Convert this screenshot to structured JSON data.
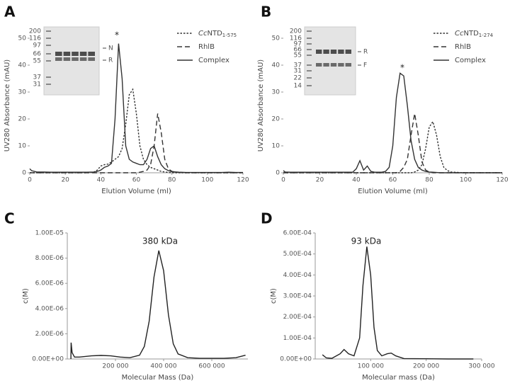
{
  "chart_data": [
    {
      "type": "line",
      "panel_label": "A",
      "x_label": "Elution Volume (ml)",
      "y_label": "UV280 Absorbance (mAU)",
      "x": [
        0,
        1,
        4,
        8,
        12,
        16,
        20,
        24,
        28,
        32,
        36,
        38,
        40,
        42,
        44,
        46,
        48,
        50,
        52,
        54,
        56,
        58,
        60,
        62,
        64,
        66,
        68,
        70,
        72,
        74,
        76,
        78,
        80,
        84,
        88,
        92,
        96,
        100,
        104,
        108,
        112,
        116,
        120
      ],
      "series": [
        {
          "name": "CcNTD1-575",
          "color": "#333333",
          "line_style": "dotted",
          "values": [
            0,
            0,
            0,
            0,
            0,
            0,
            0,
            0,
            0,
            0,
            0.2,
            1,
            2.5,
            3,
            3.2,
            4,
            5,
            6,
            9,
            18,
            29,
            31,
            22,
            10,
            5,
            3,
            2,
            1.5,
            1,
            0.5,
            0.3,
            0.1,
            0,
            0,
            0,
            0,
            0,
            0,
            0,
            0,
            0,
            0,
            0
          ]
        },
        {
          "name": "RhlB",
          "color": "#333333",
          "line_style": "dashed",
          "values": [
            0,
            0,
            0,
            0,
            0,
            0,
            0,
            0,
            0,
            0,
            0,
            0,
            0,
            0,
            0,
            0,
            0,
            0,
            0,
            0,
            0,
            0,
            0,
            0.2,
            0.5,
            1,
            3,
            10,
            22,
            15,
            5,
            1.5,
            0.5,
            0.1,
            0,
            0,
            0,
            0,
            0,
            0,
            0,
            0,
            0
          ]
        },
        {
          "name": "Complex",
          "color": "#333333",
          "line_style": "solid",
          "values": [
            1.5,
            0.8,
            0.3,
            0.3,
            0.2,
            0.2,
            0.2,
            0.2,
            0.2,
            0.2,
            0.3,
            0.5,
            1,
            2,
            2.5,
            3.5,
            20,
            48,
            35,
            10,
            5,
            4,
            3.5,
            3,
            3,
            5,
            9,
            10,
            6,
            3,
            1.5,
            0.8,
            0.4,
            0.2,
            0.1,
            0.1,
            0.1,
            0.1,
            0.1,
            0.1,
            0.2,
            0.1,
            0.1
          ]
        }
      ],
      "xlim": [
        0,
        120
      ],
      "ylim": [
        0,
        50
      ],
      "xticks": [
        0,
        20,
        40,
        60,
        80,
        100,
        120
      ],
      "yticks": [
        0,
        10,
        20,
        30,
        40,
        50
      ],
      "annotations": [
        "*"
      ],
      "inset": {
        "markers": [
          "200",
          "116",
          "97",
          "66",
          "55",
          "37",
          "31"
        ],
        "bands": [
          "N",
          "R"
        ]
      }
    },
    {
      "type": "line",
      "panel_label": "B",
      "x_label": "Elution Volume (ml)",
      "y_label": "UV280 Absorbance (mAU)",
      "x": [
        0,
        1,
        4,
        8,
        12,
        16,
        20,
        24,
        28,
        32,
        36,
        38,
        40,
        42,
        44,
        46,
        48,
        50,
        52,
        54,
        56,
        58,
        60,
        62,
        64,
        66,
        68,
        70,
        72,
        74,
        76,
        78,
        80,
        82,
        84,
        86,
        88,
        90,
        92,
        96,
        100,
        104,
        108,
        112,
        116,
        120
      ],
      "series": [
        {
          "name": "CcNTD1-274",
          "color": "#333333",
          "line_style": "dotted",
          "values": [
            0,
            0,
            0,
            0,
            0,
            0,
            0,
            0,
            0,
            0,
            0,
            0,
            0,
            0,
            0,
            0,
            0,
            0,
            0,
            0,
            0,
            0,
            0,
            0,
            0,
            0,
            0,
            0,
            0.3,
            1,
            3,
            9,
            17,
            19,
            14,
            6,
            2,
            0.8,
            0.3,
            0.1,
            0,
            0,
            0,
            0,
            0,
            0
          ]
        },
        {
          "name": "RhlB",
          "color": "#333333",
          "line_style": "dashed",
          "values": [
            0,
            0,
            0,
            0,
            0,
            0,
            0,
            0,
            0,
            0,
            0,
            0,
            0,
            0,
            0,
            0,
            0,
            0,
            0,
            0,
            0,
            0,
            0,
            0,
            0.5,
            2,
            5,
            14,
            22,
            14,
            4,
            1,
            0.3,
            0,
            0,
            0,
            0,
            0,
            0,
            0,
            0,
            0,
            0,
            0,
            0,
            0
          ]
        },
        {
          "name": "Complex",
          "color": "#333333",
          "line_style": "solid",
          "values": [
            0.8,
            0.3,
            0.2,
            0.2,
            0.2,
            0.2,
            0.2,
            0.2,
            0.2,
            0.2,
            0.2,
            0.2,
            1.5,
            4.5,
            1,
            2.5,
            0.5,
            0.2,
            0.2,
            0.2,
            0.5,
            2,
            10,
            28,
            37,
            36,
            25,
            12,
            5,
            2,
            1,
            0.5,
            0.3,
            0.2,
            0.1,
            0,
            0,
            0,
            0,
            0,
            0,
            0,
            0,
            0,
            0,
            0
          ]
        }
      ],
      "xlim": [
        0,
        120
      ],
      "ylim": [
        0,
        50
      ],
      "xticks": [
        0,
        20,
        40,
        60,
        80,
        100,
        120
      ],
      "yticks": [
        0,
        10,
        20,
        30,
        40,
        50
      ],
      "annotations": [
        "*"
      ],
      "inset": {
        "markers": [
          "200",
          "116",
          "97",
          "66",
          "55",
          "37",
          "31",
          "22",
          "14"
        ],
        "bands": [
          "R",
          "F"
        ]
      }
    },
    {
      "type": "line",
      "panel_label": "C",
      "x_label": "Molecular Mass (Da)",
      "y_label": "c(M)",
      "x": [
        15000,
        16000,
        20000,
        30000,
        50000,
        100000,
        140000,
        180000,
        220000,
        260000,
        300000,
        320000,
        340000,
        360000,
        380000,
        400000,
        420000,
        440000,
        460000,
        500000,
        550000,
        650000,
        700000,
        740000
      ],
      "series": [
        {
          "name": "c(M)",
          "color": "#222222",
          "line_style": "solid",
          "values": [
            0,
            1.3e-06,
            5e-07,
            1.5e-07,
            1.5e-07,
            2.5e-07,
            2.8e-07,
            2.5e-07,
            1.5e-07,
            1e-07,
            3e-07,
            1e-06,
            3e-06,
            6.5e-06,
            8.6e-06,
            7e-06,
            3.5e-06,
            1.2e-06,
            4e-07,
            1e-07,
            5e-08,
            5e-08,
            1e-07,
            3e-07
          ]
        }
      ],
      "xlim": [
        0,
        750000
      ],
      "ylim": [
        0,
        1e-05
      ],
      "xticks": [
        {
          "value": 200000,
          "label": "200 000"
        },
        {
          "value": 400000,
          "label": "400 000"
        },
        {
          "value": 600000,
          "label": "600 000"
        }
      ],
      "yticks": [
        {
          "value": 0,
          "label": "0.00E+00"
        },
        {
          "value": 2e-06,
          "label": "2.00E-06"
        },
        {
          "value": 4e-06,
          "label": "4.00E-06"
        },
        {
          "value": 6e-06,
          "label": "6.00E-06"
        },
        {
          "value": 8e-06,
          "label": "8.00E-06"
        },
        {
          "value": 1e-05,
          "label": "1.00E-05"
        }
      ],
      "annotations": [
        "380 kDa"
      ]
    },
    {
      "type": "line",
      "panel_label": "D",
      "x_label": "Molecular mass (Da)",
      "y_label": "c(M)",
      "x": [
        13000,
        20000,
        30000,
        45000,
        52000,
        60000,
        70000,
        80000,
        86000,
        93000,
        100000,
        106000,
        112000,
        120000,
        130000,
        137000,
        145000,
        160000,
        200000,
        240000,
        285000
      ],
      "series": [
        {
          "name": "c(M)",
          "color": "#222222",
          "line_style": "solid",
          "values": [
            2e-05,
            5e-06,
            3e-06,
            2.5e-05,
            4.5e-05,
            2.5e-05,
            1.5e-05,
            0.0001,
            0.00035,
            0.000535,
            0.0004,
            0.00015,
            4e-05,
            1.5e-05,
            2.5e-05,
            2.8e-05,
            1.5e-05,
            2e-06,
            1e-06,
            0,
            0
          ]
        }
      ],
      "xlim": [
        0,
        300000
      ],
      "ylim": [
        0,
        0.0006
      ],
      "xticks": [
        {
          "value": 100000,
          "label": "100 000"
        },
        {
          "value": 200000,
          "label": "200 000"
        },
        {
          "value": 300000,
          "label": "300 000"
        }
      ],
      "yticks": [
        {
          "value": 0,
          "label": "0.00E+00"
        },
        {
          "value": 0.0001,
          "label": "1.00E-04"
        },
        {
          "value": 0.0002,
          "label": "2.00E-04"
        },
        {
          "value": 0.0003,
          "label": "3.00E-04"
        },
        {
          "value": 0.0004,
          "label": "4.00E-04"
        },
        {
          "value": 0.0005,
          "label": "5.00E-04"
        },
        {
          "value": 0.0006,
          "label": "6.00E-04"
        }
      ],
      "annotations": [
        "93 kDa"
      ]
    }
  ]
}
